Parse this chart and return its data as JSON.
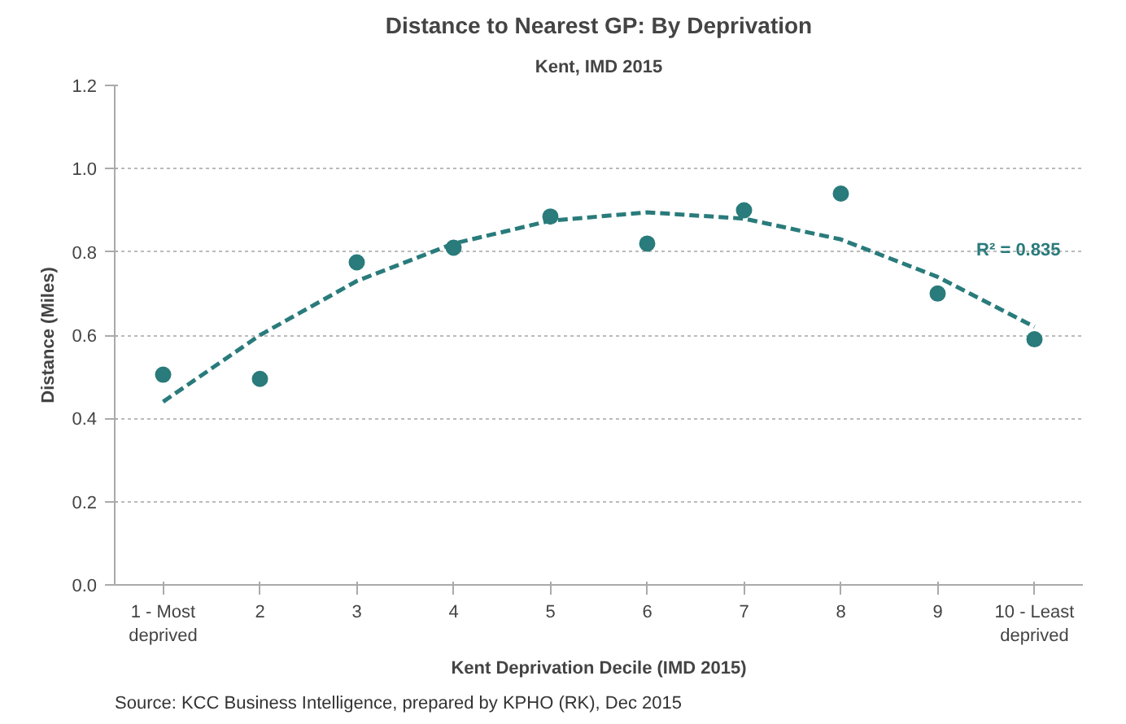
{
  "chart_data": {
    "type": "scatter",
    "title": "Distance to Nearest GP: By Deprivation",
    "subtitle": "Kent, IMD 2015",
    "xlabel": "Kent Deprivation Decile (IMD 2015)",
    "ylabel": "Distance (Miles)",
    "categories": [
      "1 - Most\ndeprived",
      "2",
      "3",
      "4",
      "5",
      "6",
      "7",
      "8",
      "9",
      "10 - Least\ndeprived"
    ],
    "series": [
      {
        "color": "#2a7b7b",
        "marker": "circle",
        "values": [
          0.505,
          0.495,
          0.775,
          0.81,
          0.885,
          0.82,
          0.9,
          0.94,
          0.7,
          0.59
        ]
      },
      {
        "type": "line",
        "color": "#2a7b7b",
        "line_style": "dashed",
        "values": [
          0.44,
          0.6,
          0.73,
          0.82,
          0.875,
          0.895,
          0.88,
          0.83,
          0.74,
          0.62
        ]
      }
    ],
    "ylim": [
      0,
      1.2
    ],
    "yticks": [
      {
        "value": 0,
        "label": "0.0"
      },
      {
        "value": 0.2,
        "label": "0.2"
      },
      {
        "value": 0.4,
        "label": "0.4"
      },
      {
        "value": 0.6,
        "label": "0.6"
      },
      {
        "value": 0.8,
        "label": "0.8"
      },
      {
        "value": 1,
        "label": "1.0"
      },
      {
        "value": 1.2,
        "label": "1.2"
      }
    ],
    "grid": "y",
    "annotations": [
      "R² = 0.835",
      "Source: KCC Business Intelligence, prepared by KPHO (RK), Dec 2015"
    ]
  }
}
